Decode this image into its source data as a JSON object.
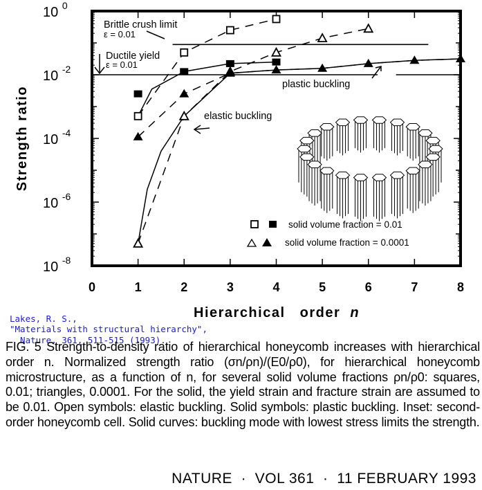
{
  "chart_data": {
    "type": "line",
    "title": "",
    "xlabel": "Hierarchical order n",
    "ylabel": "Strength ratio",
    "x_ticks": [
      "0",
      "1",
      "2",
      "3",
      "4",
      "5",
      "6",
      "7",
      "8"
    ],
    "y_ticks": [
      {
        "base": "10",
        "exp": "0",
        "value": 0
      },
      {
        "base": "10",
        "exp": "-2",
        "value": -2
      },
      {
        "base": "10",
        "exp": "-4",
        "value": -4
      },
      {
        "base": "10",
        "exp": "-6",
        "value": -6
      },
      {
        "base": "10",
        "exp": "-8",
        "value": -8
      }
    ],
    "xlim": [
      0,
      8
    ],
    "ylim_log10": [
      -8,
      0
    ],
    "yscale": "log",
    "series": [
      {
        "name": "solid volume fraction = 0.01 (elastic buckling, open squares)",
        "marker": "open-square",
        "line": "dashed",
        "x": [
          1,
          2,
          3,
          4
        ],
        "log10_y": [
          -3.3,
          -1.3,
          -0.6,
          -0.25
        ]
      },
      {
        "name": "solid volume fraction = 0.01 (plastic buckling, filled squares)",
        "marker": "filled-square",
        "line": "none",
        "x": [
          1,
          2,
          3,
          4
        ],
        "log10_y": [
          -2.6,
          -1.9,
          -1.65,
          -1.6
        ]
      },
      {
        "name": "solid volume fraction = 0.0001 (elastic buckling, open triangles)",
        "marker": "open-triangle",
        "line": "dashed",
        "x": [
          1,
          2,
          3,
          4,
          5,
          6
        ],
        "log10_y": [
          -7.3,
          -3.3,
          -1.9,
          -1.3,
          -0.85,
          -0.55
        ]
      },
      {
        "name": "solid volume fraction = 0.0001 (plastic buckling, filled triangles)",
        "marker": "filled-triangle",
        "line": "dashed",
        "x": [
          1,
          2,
          3,
          4,
          5,
          6,
          7,
          8
        ],
        "log10_y": [
          -3.95,
          -2.6,
          -1.95,
          -1.85,
          -1.8,
          -1.65,
          -1.55,
          -1.5
        ]
      }
    ],
    "solid_curves": [
      {
        "name": "0.01 lowest-stress limit",
        "points": [
          [
            1,
            -3.3
          ],
          [
            1.3,
            -2.45
          ],
          [
            2,
            -1.9
          ],
          [
            3,
            -1.65
          ],
          [
            4,
            -1.6
          ]
        ]
      },
      {
        "name": "0.0001 lowest-stress limit",
        "points": [
          [
            1,
            -7.3
          ],
          [
            1.2,
            -5.6
          ],
          [
            1.5,
            -4.4
          ],
          [
            2,
            -3.3
          ],
          [
            3,
            -1.95
          ],
          [
            4,
            -1.85
          ],
          [
            5,
            -1.8
          ],
          [
            6,
            -1.65
          ],
          [
            7,
            -1.55
          ],
          [
            8,
            -1.5
          ]
        ]
      }
    ],
    "reference_lines": [
      {
        "label": "Brittle crush limit",
        "sublabel": "ε = 0.01",
        "log10_y": -1.05,
        "x_from": 1.75,
        "x_to": 7.3
      },
      {
        "label": "Ductile yield",
        "sublabel": "ε = 0.01",
        "log10_y": -2.0,
        "x_from": 0,
        "x_to": 6.2
      }
    ],
    "annotations": [
      {
        "text": "plastic buckling"
      },
      {
        "text": "elastic buckling"
      }
    ],
    "legend": [
      {
        "symbols": "□ ■",
        "text": "solid volume fraction = 0.01"
      },
      {
        "symbols": "Δ ▲",
        "text": "solid volume fraction = 0.0001"
      }
    ],
    "legend_position": "lower right inside",
    "inset": "second-order honeycomb cell",
    "grid": false
  },
  "labels": {
    "brittle": "Brittle  crush  limit",
    "brittle_eps": "ε = 0.01",
    "ductile": "Ductile  yield",
    "ductile_eps": "ε = 0.01",
    "plastic": "plastic  buckling",
    "elastic": "elastic  buckling",
    "ylabel": "Strength    ratio",
    "legend1": "solid  volume  fraction  =  0.01",
    "legend2": "solid  volume  fraction  =  0.0001"
  },
  "xaxis_title": "Hierarchical   order",
  "xaxis_var": "n",
  "reference": {
    "line1": "Lakes, R. S.,",
    "line2": "\"Materials with structural hierarchy\",",
    "line3": "  Nature, 361, 511-515 (1993)."
  },
  "caption": "FIG. 5 Strength-to-density ratio of hierarchical honeycomb increases with hierarchical order n. Normalized strength ratio (σn/ρn)/(E0/ρ0), for hierarchical honeycomb microstructure, as a function of n, for several solid volume fractions ρn/ρ0: squares, 0.01; triangles, 0.0001. For the solid, the yield strain and fracture strain are assumed to be 0.01. Open symbols: elastic buckling. Solid symbols: plastic buckling. Inset: second-order honeycomb cell. Solid curves: buckling mode with lowest stress limits the strength.",
  "footer": "NATURE  ·  VOL 361  ·  11 FEBRUARY 1993"
}
